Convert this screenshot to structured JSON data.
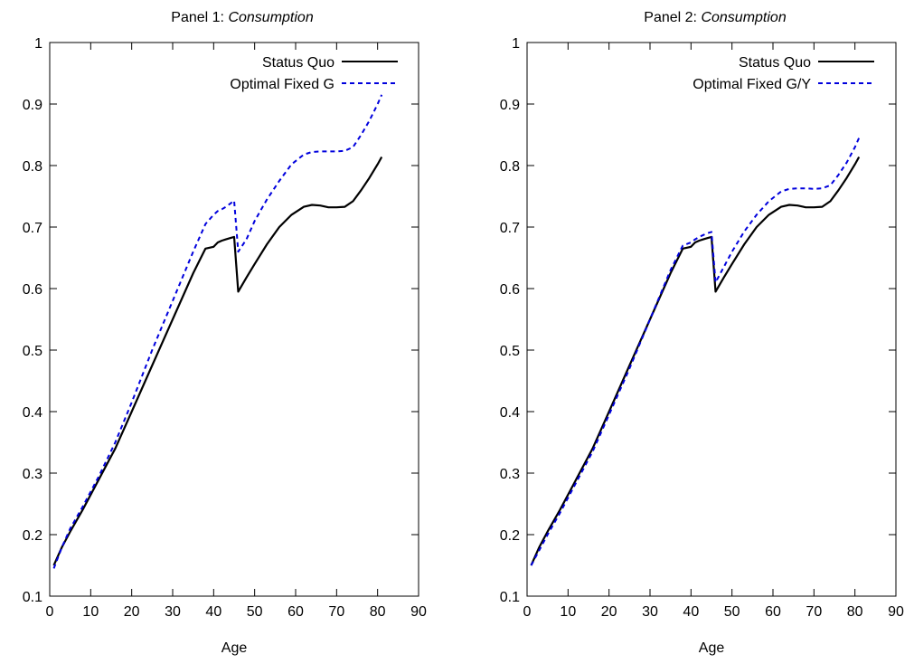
{
  "chart_data": [
    {
      "type": "line",
      "title": {
        "prefix": "Panel 1: ",
        "emphasis": "Consumption"
      },
      "xlabel": "Age",
      "ylabel": "",
      "xlim": [
        0,
        90
      ],
      "ylim": [
        0.1,
        1.0
      ],
      "xticks": [
        "0",
        "10",
        "20",
        "30",
        "40",
        "50",
        "60",
        "70",
        "80",
        "90"
      ],
      "yticks": [
        "0.1",
        "0.2",
        "0.3",
        "0.4",
        "0.5",
        "0.6",
        "0.7",
        "0.8",
        "0.9",
        "1"
      ],
      "grid": false,
      "legend_position": "top-right",
      "series": [
        {
          "name": "Status Quo",
          "color": "#000000",
          "dash": "solid",
          "x": [
            1,
            3,
            5,
            8,
            12,
            16,
            20,
            25,
            30,
            35,
            38,
            40,
            41,
            42,
            43,
            44,
            45,
            46,
            48,
            50,
            53,
            56,
            59,
            62,
            64,
            66,
            68,
            70,
            72,
            74,
            76,
            78,
            80,
            81
          ],
          "y": [
            0.15,
            0.18,
            0.205,
            0.24,
            0.29,
            0.34,
            0.4,
            0.475,
            0.55,
            0.625,
            0.665,
            0.668,
            0.675,
            0.678,
            0.68,
            0.682,
            0.684,
            0.595,
            0.618,
            0.64,
            0.672,
            0.7,
            0.72,
            0.733,
            0.736,
            0.735,
            0.732,
            0.732,
            0.733,
            0.742,
            0.76,
            0.78,
            0.802,
            0.814
          ]
        },
        {
          "name": "Optimal Fixed G",
          "color": "#0000dd",
          "dash": "dashed",
          "x": [
            1,
            3,
            5,
            8,
            12,
            16,
            20,
            25,
            30,
            35,
            38,
            40,
            41,
            42,
            43,
            44,
            45,
            46,
            48,
            50,
            53,
            56,
            59,
            62,
            64,
            66,
            68,
            70,
            72,
            74,
            76,
            78,
            80,
            81
          ],
          "y": [
            0.145,
            0.18,
            0.21,
            0.245,
            0.295,
            0.35,
            0.415,
            0.5,
            0.58,
            0.66,
            0.705,
            0.72,
            0.726,
            0.729,
            0.733,
            0.738,
            0.743,
            0.66,
            0.68,
            0.71,
            0.745,
            0.775,
            0.802,
            0.818,
            0.822,
            0.823,
            0.823,
            0.823,
            0.824,
            0.83,
            0.85,
            0.873,
            0.9,
            0.915
          ]
        }
      ]
    },
    {
      "type": "line",
      "title": {
        "prefix": "Panel 2: ",
        "emphasis": "Consumption"
      },
      "xlabel": "Age",
      "ylabel": "",
      "xlim": [
        0,
        90
      ],
      "ylim": [
        0.1,
        1.0
      ],
      "xticks": [
        "0",
        "10",
        "20",
        "30",
        "40",
        "50",
        "60",
        "70",
        "80",
        "90"
      ],
      "yticks": [
        "0.1",
        "0.2",
        "0.3",
        "0.4",
        "0.5",
        "0.6",
        "0.7",
        "0.8",
        "0.9",
        "1"
      ],
      "grid": false,
      "legend_position": "top-right",
      "series": [
        {
          "name": "Status Quo",
          "color": "#000000",
          "dash": "solid",
          "x": [
            1,
            3,
            5,
            8,
            12,
            16,
            20,
            25,
            30,
            35,
            38,
            40,
            41,
            42,
            43,
            44,
            45,
            46,
            48,
            50,
            53,
            56,
            59,
            62,
            64,
            66,
            68,
            70,
            72,
            74,
            76,
            78,
            80,
            81
          ],
          "y": [
            0.15,
            0.18,
            0.205,
            0.24,
            0.29,
            0.34,
            0.4,
            0.475,
            0.55,
            0.625,
            0.665,
            0.668,
            0.675,
            0.678,
            0.68,
            0.682,
            0.684,
            0.595,
            0.618,
            0.64,
            0.672,
            0.7,
            0.72,
            0.733,
            0.736,
            0.735,
            0.732,
            0.732,
            0.733,
            0.742,
            0.76,
            0.78,
            0.802,
            0.814
          ]
        },
        {
          "name": "Optimal Fixed G/Y",
          "color": "#0000dd",
          "dash": "dashed",
          "x": [
            1,
            3,
            5,
            8,
            12,
            16,
            20,
            25,
            30,
            35,
            38,
            40,
            41,
            42,
            43,
            44,
            45,
            46,
            48,
            50,
            53,
            56,
            59,
            62,
            64,
            66,
            68,
            70,
            72,
            74,
            76,
            78,
            80,
            81
          ],
          "y": [
            0.15,
            0.175,
            0.2,
            0.235,
            0.285,
            0.335,
            0.395,
            0.47,
            0.55,
            0.63,
            0.67,
            0.675,
            0.68,
            0.684,
            0.687,
            0.69,
            0.692,
            0.61,
            0.635,
            0.66,
            0.693,
            0.72,
            0.742,
            0.758,
            0.762,
            0.763,
            0.763,
            0.762,
            0.763,
            0.768,
            0.785,
            0.805,
            0.83,
            0.845
          ]
        }
      ]
    }
  ]
}
